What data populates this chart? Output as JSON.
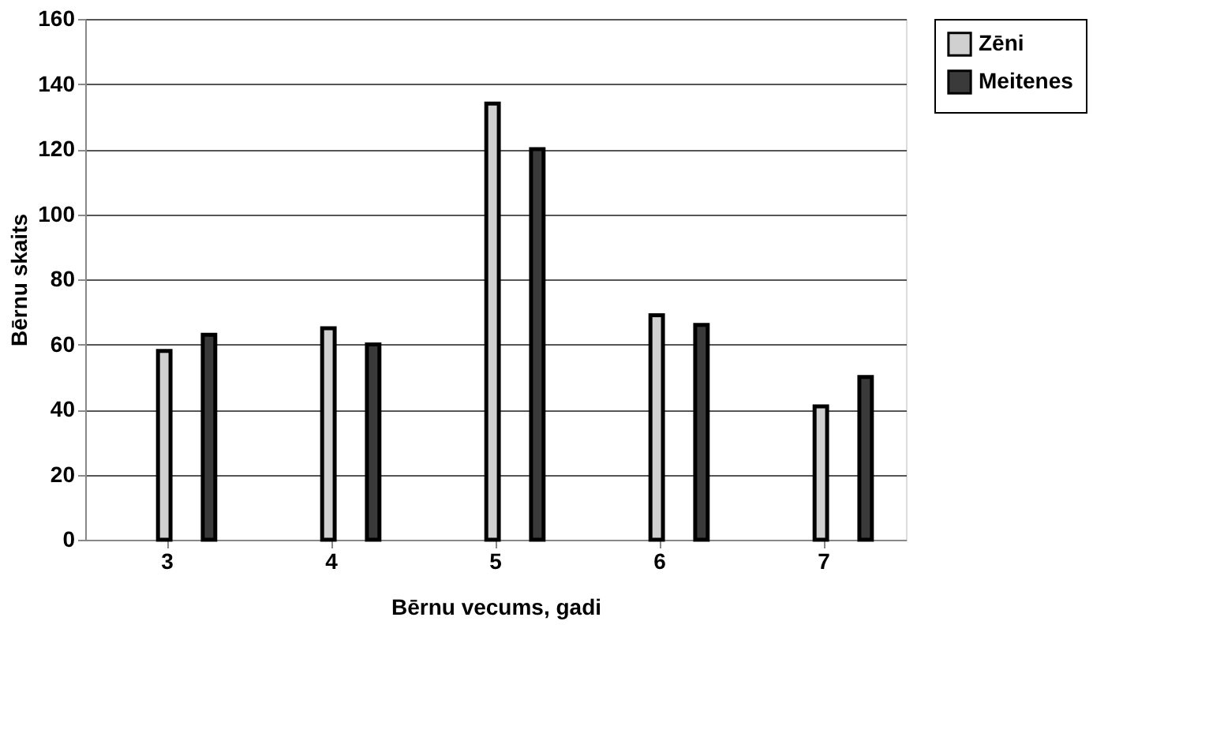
{
  "chart_data": {
    "type": "bar",
    "xlabel": "Bērnu vecums, gadi",
    "ylabel": "Bērnu skaits",
    "categories": [
      "3",
      "4",
      "5",
      "6",
      "7"
    ],
    "series": [
      {
        "name": "Zēni",
        "color": "#d0d0d0",
        "values": [
          58,
          65,
          134,
          69,
          41
        ]
      },
      {
        "name": "Meitenes",
        "color": "#3a3a3a",
        "values": [
          63,
          60,
          120,
          66,
          50
        ]
      }
    ],
    "ylim": [
      0,
      160
    ],
    "yticks": [
      0,
      20,
      40,
      60,
      80,
      100,
      120,
      140,
      160
    ],
    "grid": "y",
    "legend": "right"
  }
}
